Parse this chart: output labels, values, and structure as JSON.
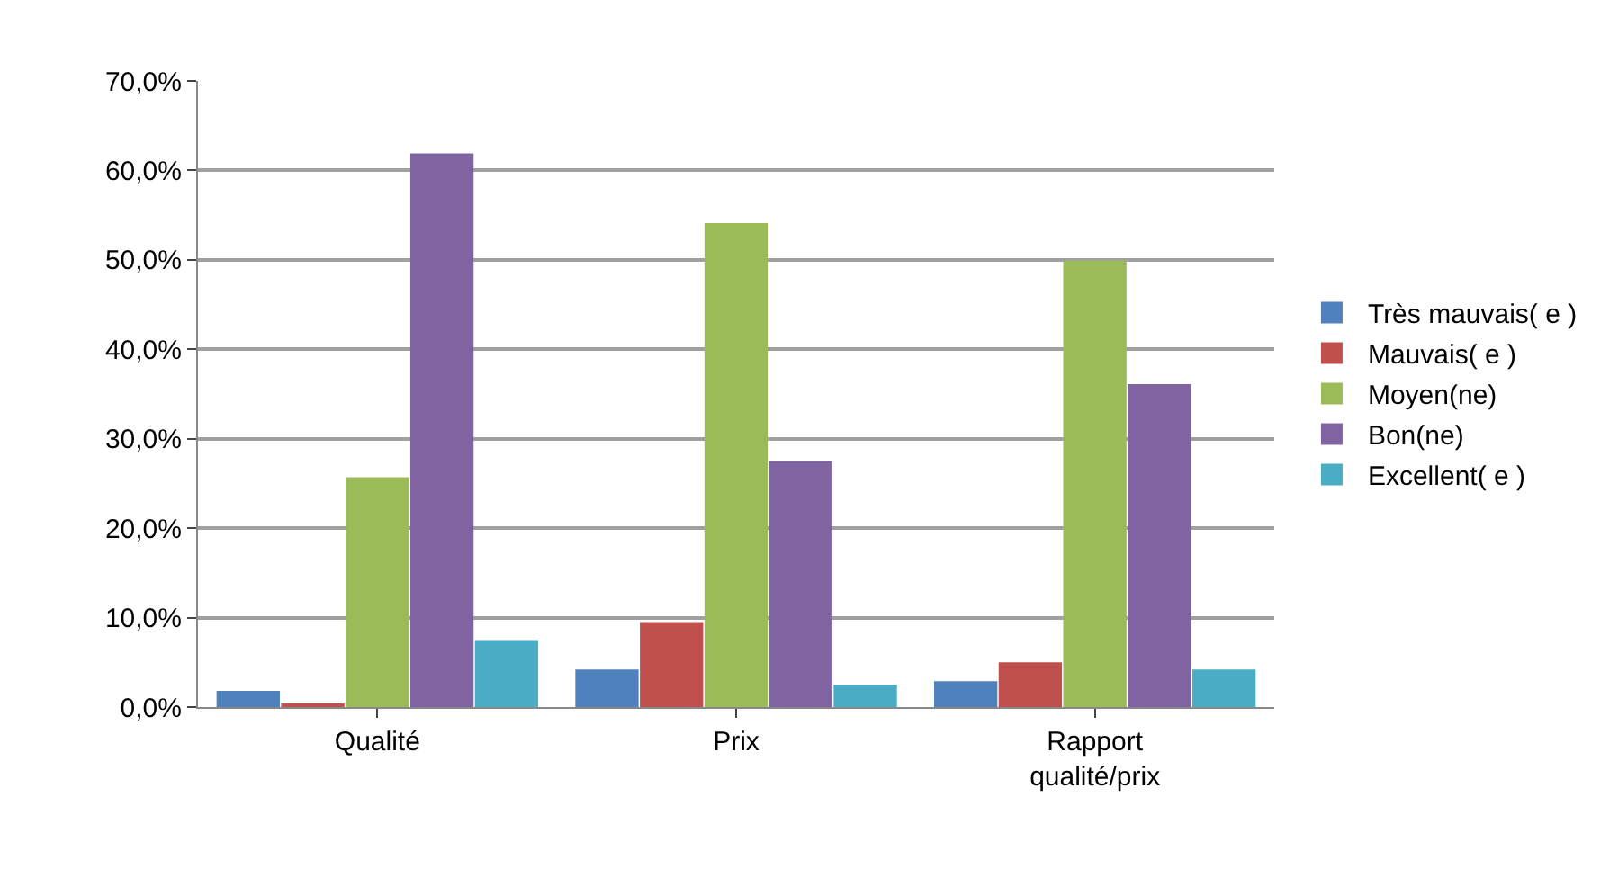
{
  "chart_data": {
    "type": "bar",
    "categories": [
      "Qualité",
      "Prix",
      "Rapport qualité/prix"
    ],
    "series": [
      {
        "name": "Très mauvais( e )",
        "color": "#4f81bd",
        "values": [
          1.8,
          4.2,
          2.9
        ]
      },
      {
        "name": "Mauvais( e )",
        "color": "#c0504d",
        "values": [
          0.4,
          9.5,
          5.0
        ]
      },
      {
        "name": "Moyen(ne)",
        "color": "#9bbb59",
        "values": [
          25.7,
          54.1,
          49.9
        ]
      },
      {
        "name": "Bon(ne)",
        "color": "#8064a2",
        "values": [
          61.9,
          27.5,
          36.1
        ]
      },
      {
        "name": "Excellent( e )",
        "color": "#4bacc6",
        "values": [
          7.5,
          2.5,
          4.2
        ]
      }
    ],
    "ylim": [
      0,
      70
    ],
    "yticks": [
      {
        "value": 0,
        "label": "0,0%"
      },
      {
        "value": 10,
        "label": "10,0%"
      },
      {
        "value": 20,
        "label": "20,0%"
      },
      {
        "value": 30,
        "label": "30,0%"
      },
      {
        "value": 40,
        "label": "40,0%"
      },
      {
        "value": 50,
        "label": "50,0%"
      },
      {
        "value": 60,
        "label": "60,0%"
      },
      {
        "value": 70,
        "label": "70,0%"
      }
    ],
    "grid": "y",
    "legend": "right"
  }
}
